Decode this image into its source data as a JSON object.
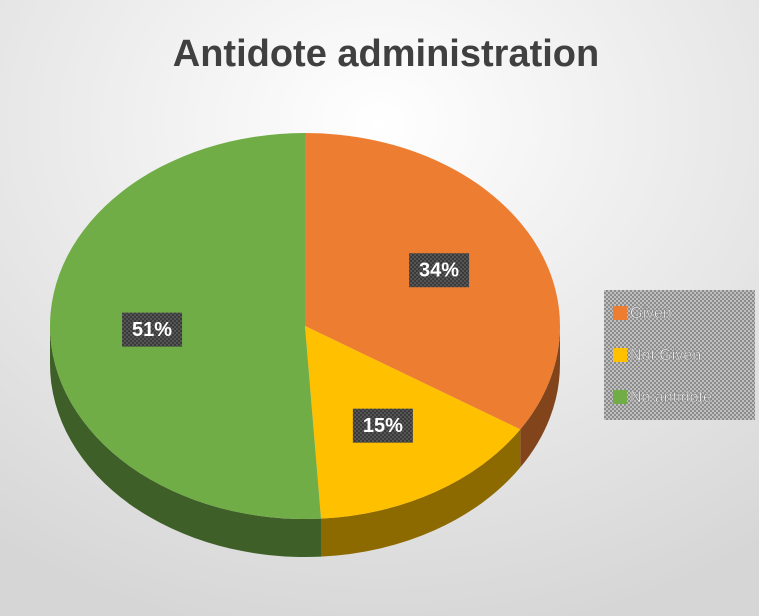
{
  "chart_data": {
    "type": "pie3d",
    "title": "Antidote administration",
    "categories": [
      "Given",
      "Not Given",
      "No antidote"
    ],
    "values": [
      34,
      15,
      51
    ],
    "value_labels": [
      "34%",
      "15%",
      "51%"
    ],
    "colors": [
      "#ED7D31",
      "#FFC000",
      "#70AD47"
    ],
    "legend": "right"
  }
}
